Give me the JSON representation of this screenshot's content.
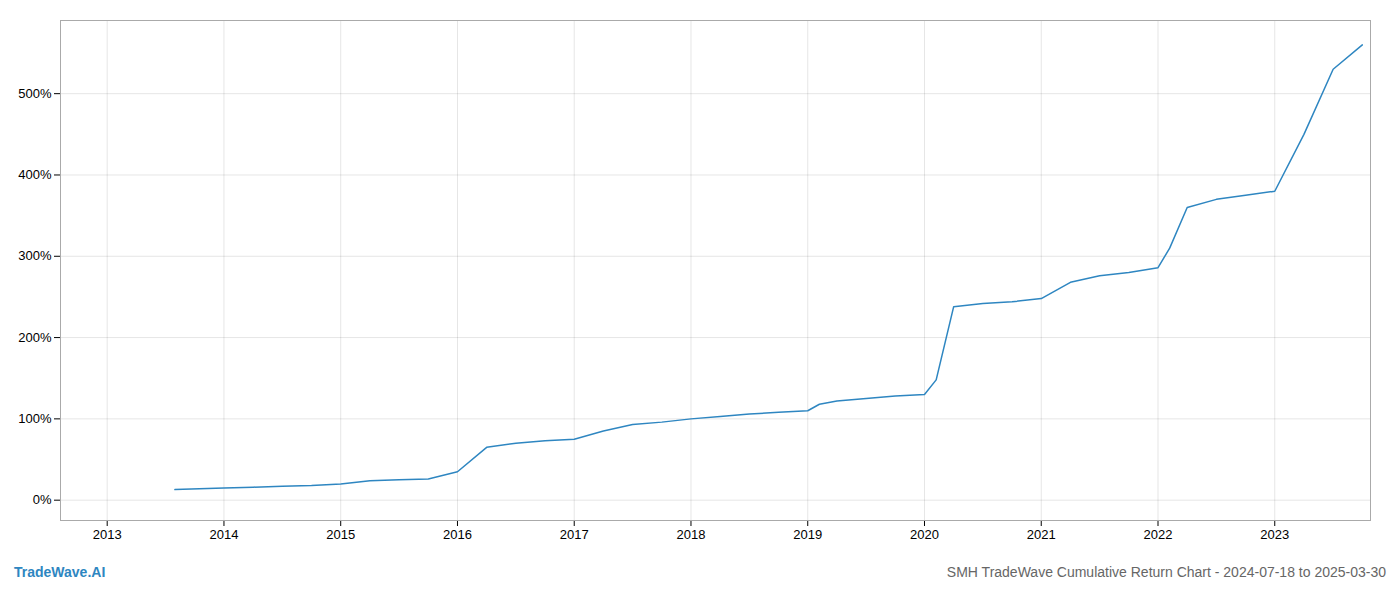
{
  "chart_data": {
    "type": "line",
    "title": "SMH TradeWave Cumulative Return Chart - 2024-07-18 to 2025-03-30",
    "annotations": [
      "TradeWave.AI"
    ],
    "color": "#2e86c1",
    "grid": true,
    "x": [
      2013.58,
      2014.0,
      2014.25,
      2014.5,
      2014.75,
      2015.0,
      2015.25,
      2015.5,
      2015.75,
      2016.0,
      2016.25,
      2016.5,
      2016.75,
      2017.0,
      2017.25,
      2017.5,
      2017.75,
      2018.0,
      2018.25,
      2018.5,
      2018.75,
      2019.0,
      2019.1,
      2019.25,
      2019.5,
      2019.75,
      2020.0,
      2020.1,
      2020.25,
      2020.5,
      2020.75,
      2021.0,
      2021.25,
      2021.5,
      2021.75,
      2022.0,
      2022.1,
      2022.25,
      2022.5,
      2022.75,
      2023.0,
      2023.25,
      2023.5,
      2023.75
    ],
    "values": [
      13,
      15,
      16,
      17,
      18,
      20,
      24,
      25,
      26,
      35,
      65,
      70,
      73,
      75,
      85,
      93,
      96,
      100,
      103,
      106,
      108,
      110,
      118,
      122,
      125,
      128,
      130,
      148,
      238,
      242,
      244,
      248,
      268,
      276,
      280,
      286,
      310,
      360,
      370,
      375,
      380,
      450,
      530,
      560
    ],
    "xlim": [
      2012.6,
      2023.82
    ],
    "xticks": [
      2013,
      2014,
      2015,
      2016,
      2017,
      2018,
      2019,
      2020,
      2021,
      2022,
      2023
    ],
    "ylim": [
      -25,
      590
    ],
    "yticks": [
      {
        "value": 0,
        "label": "0%"
      },
      {
        "value": 100,
        "label": "100%"
      },
      {
        "value": 200,
        "label": "200%"
      },
      {
        "value": 300,
        "label": "300%"
      },
      {
        "value": 400,
        "label": "400%"
      },
      {
        "value": 500,
        "label": "500%"
      }
    ]
  }
}
